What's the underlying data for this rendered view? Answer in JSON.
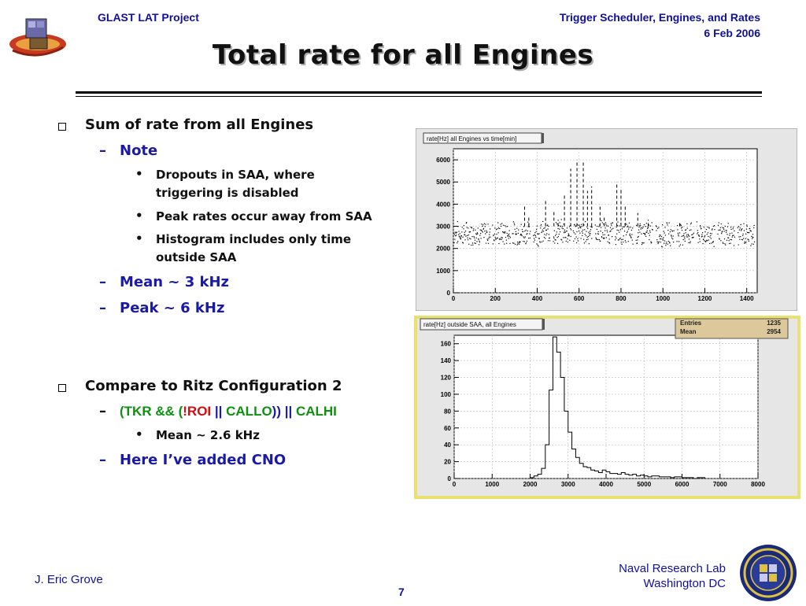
{
  "header": {
    "left": "GLAST LAT Project",
    "right_line1": "Trigger Scheduler, Engines, and Rates",
    "right_line2": "6 Feb 2006"
  },
  "title": "Total rate for all Engines",
  "bullets": {
    "b1": "Sum of rate from all Engines",
    "b1_note": "Note",
    "b1_sub1_line1": "Dropouts in SAA, where",
    "b1_sub1_line2": "triggering is disabled",
    "b1_sub2": "Peak rates occur away from SAA",
    "b1_sub3_line1": "Histogram includes only time",
    "b1_sub3_line2": "outside SAA",
    "b1_mean": "Mean ~ 3 kHz",
    "b1_peak": "Peak ~ 6 kHz",
    "b2": "Compare to Ritz Configuration 2",
    "b2_expr": {
      "p1": "(TKR && (",
      "p2": "!ROI",
      "p3": " || ",
      "p4": "CALLO",
      "p5": ")) || ",
      "p6": "CALHI"
    },
    "b2_mean": "Mean ~ 2.6 kHz",
    "b2_cno": "Here I’ve added CNO",
    "dash": "–",
    "dot": "•"
  },
  "colors": {
    "header_blue": "#1010a0",
    "note_blue": "#1a1aa8",
    "expr_green": "#109010",
    "expr_red": "#d01010",
    "chart_panel": "#e6e6e6",
    "stats_box": "#dcc89a",
    "yellow_frame": "#e8e070"
  },
  "footer": {
    "author": "J. Eric Grove",
    "page": "7",
    "org_line1": "Naval Research Lab",
    "org_line2": "Washington DC"
  },
  "chart_data": [
    {
      "type": "scatter",
      "title": "rate[Hz] all Engines vs time[min]",
      "xlim": [
        0,
        1450
      ],
      "ylim": [
        0,
        6500
      ],
      "x_ticks": [
        "0",
        "200",
        "400",
        "600",
        "800",
        "1000",
        "1200",
        "1400"
      ],
      "y_ticks": [
        "0",
        "1000",
        "2000",
        "3000",
        "4000",
        "5000",
        "6000"
      ],
      "grid": true,
      "baseline_segments": [
        {
          "x_start": 0,
          "x_end": 175,
          "y_mean": 2700
        },
        {
          "x_start": 185,
          "x_end": 270,
          "y_mean": 2700
        },
        {
          "x_start": 280,
          "x_end": 365,
          "y_mean": 2700
        },
        {
          "x_start": 380,
          "x_end": 460,
          "y_mean": 2700
        },
        {
          "x_start": 475,
          "x_end": 560,
          "y_mean": 2750
        },
        {
          "x_start": 570,
          "x_end": 660,
          "y_mean": 2750
        },
        {
          "x_start": 675,
          "x_end": 760,
          "y_mean": 2750
        },
        {
          "x_start": 770,
          "x_end": 855,
          "y_mean": 2700
        },
        {
          "x_start": 870,
          "x_end": 950,
          "y_mean": 2700
        },
        {
          "x_start": 965,
          "x_end": 1050,
          "y_mean": 2650
        },
        {
          "x_start": 1065,
          "x_end": 1145,
          "y_mean": 2700
        },
        {
          "x_start": 1160,
          "x_end": 1245,
          "y_mean": 2650
        },
        {
          "x_start": 1260,
          "x_end": 1340,
          "y_mean": 2650
        },
        {
          "x_start": 1355,
          "x_end": 1435,
          "y_mean": 2650
        }
      ],
      "spikes": [
        {
          "x": 340,
          "y_top": 3900
        },
        {
          "x": 360,
          "y_top": 3400
        },
        {
          "x": 440,
          "y_top": 4200
        },
        {
          "x": 480,
          "y_top": 3700
        },
        {
          "x": 500,
          "y_top": 3300
        },
        {
          "x": 530,
          "y_top": 4400
        },
        {
          "x": 560,
          "y_top": 5600
        },
        {
          "x": 590,
          "y_top": 6000
        },
        {
          "x": 620,
          "y_top": 5900
        },
        {
          "x": 640,
          "y_top": 4600
        },
        {
          "x": 660,
          "y_top": 4800
        },
        {
          "x": 700,
          "y_top": 4000
        },
        {
          "x": 720,
          "y_top": 3500
        },
        {
          "x": 780,
          "y_top": 5000
        },
        {
          "x": 800,
          "y_top": 4700
        },
        {
          "x": 820,
          "y_top": 3900
        },
        {
          "x": 880,
          "y_top": 3600
        },
        {
          "x": 930,
          "y_top": 3300
        },
        {
          "x": 1080,
          "y_top": 3200
        }
      ]
    },
    {
      "type": "bar",
      "title": "rate[Hz] outside SAA, all Engines",
      "stats": [
        {
          "label": "Entries",
          "value": "1235"
        },
        {
          "label": "Mean",
          "value": "2954"
        }
      ],
      "xlim": [
        0,
        8000
      ],
      "ylim": [
        0,
        170
      ],
      "x_ticks": [
        "0",
        "1000",
        "2000",
        "3000",
        "4000",
        "5000",
        "6000",
        "7000",
        "8000"
      ],
      "y_ticks": [
        "0",
        "20",
        "40",
        "60",
        "80",
        "100",
        "120",
        "140",
        "160"
      ],
      "grid": true,
      "bin_start": 2000,
      "bin_width": 100,
      "values": [
        1,
        3,
        5,
        12,
        40,
        105,
        168,
        150,
        120,
        80,
        55,
        35,
        25,
        18,
        14,
        13,
        10,
        9,
        7,
        10,
        8,
        6,
        6,
        5,
        7,
        5,
        4,
        5,
        3,
        4,
        3,
        2,
        3,
        3,
        2,
        2,
        2,
        1,
        2,
        2,
        1,
        1,
        1,
        0,
        1,
        1
      ]
    }
  ]
}
